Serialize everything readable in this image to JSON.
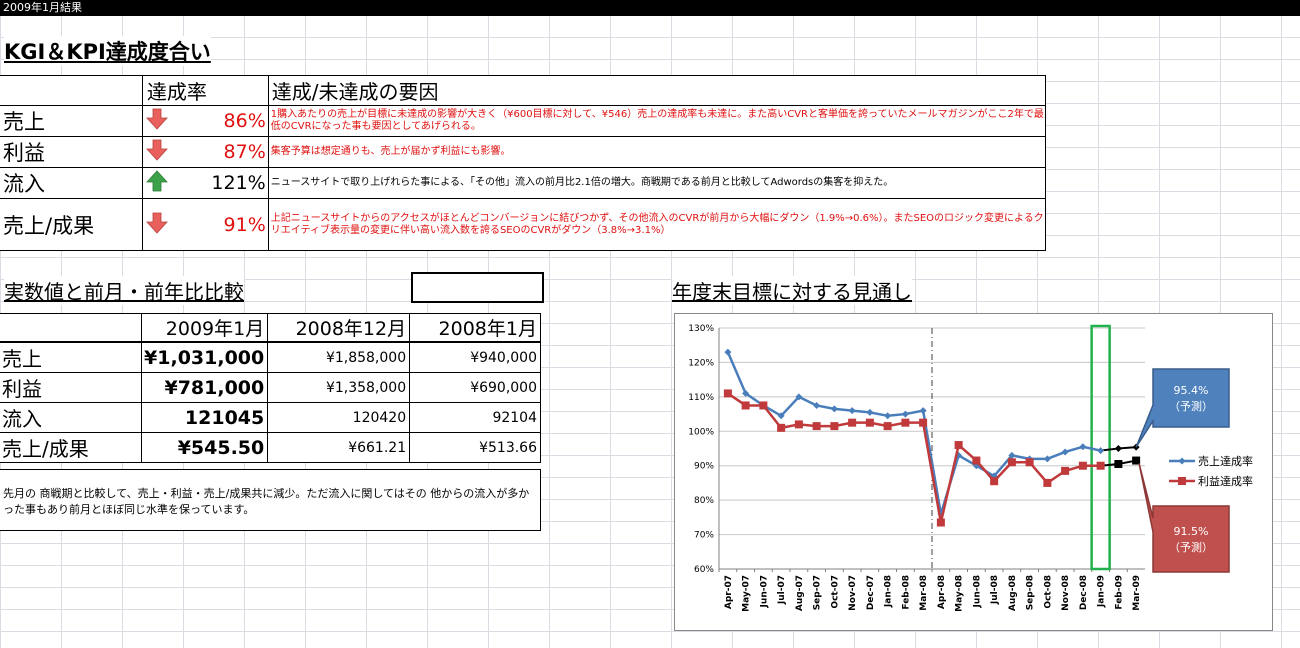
{
  "sheet_title": "2009年1月結果",
  "kpi_section": {
    "title": "KGI＆KPI達成度合い",
    "header_rate": "達成率",
    "header_reason": "達成/未達成の要因",
    "rows": [
      {
        "label": "売上",
        "rate": "86%",
        "trend": "down",
        "reason": "1購入あたりの売上が目標に未達成の影響が大きく（¥600目標に対して、¥546）売上の達成率も未達に。また高いCVRと客単価を誇っていたメールマガジンがここ2年で最低のCVRになった事も要因としてあげられる。",
        "reason_color": "red"
      },
      {
        "label": "利益",
        "rate": "87%",
        "trend": "down",
        "reason": "集客予算は想定通りも、売上が届かず利益にも影響。",
        "reason_color": "red"
      },
      {
        "label": "流入",
        "rate": "121%",
        "trend": "up",
        "reason": "ニュースサイトで取り上げれらた事による、「その他」流入の前月比2.1倍の増大。商戦期である前月と比較してAdwordsの集客を抑えた。",
        "reason_color": "black"
      },
      {
        "label": "売上/成果",
        "rate": "91%",
        "trend": "down",
        "reason": "上記ニュースサイトからのアクセスがほとんどコンバージョンに結びつかず、その他流入のCVRが前月から大幅にダウン（1.9%→0.6%）。またSEOのロジック変更によるクリエイティブ表示量の変更に伴い高い流入数を誇るSEOのCVRがダウン（3.8%→3.1%）",
        "reason_color": "red"
      }
    ]
  },
  "compare_section": {
    "title": "実数値と前月・前年比比較",
    "headers": [
      "2009年1月",
      "2008年12月",
      "2008年1月"
    ],
    "rows": [
      {
        "label": "売上",
        "values": [
          "¥1,031,000",
          "¥1,858,000",
          "¥940,000"
        ]
      },
      {
        "label": "利益",
        "values": [
          "¥781,000",
          "¥1,358,000",
          "¥690,000"
        ]
      },
      {
        "label": "流入",
        "values": [
          "121045",
          "120420",
          "92104"
        ]
      },
      {
        "label": "売上/成果",
        "values": [
          "¥545.50",
          "¥661.21",
          "¥513.66"
        ]
      }
    ],
    "summary": "先月の 商戦期と比較して、売上・利益・売上/成果共に減少。ただ流入に関してはその 他からの流入が多かった事もあり前月とほぼ同じ水準を保っています。"
  },
  "forecast_section": {
    "title": "年度末目標に対する見通し"
  },
  "colors": {
    "sales_series": "#4a7ebb",
    "profit_series": "#c0393b",
    "down_arrow": "#e8615d",
    "up_arrow": "#3ca24a",
    "highlight_box": "#22b14c",
    "forecast_marker": "#000000"
  },
  "chart_data": {
    "type": "line",
    "categories": [
      "Apr-07",
      "May-07",
      "Jun-07",
      "Jul-07",
      "Aug-07",
      "Sep-07",
      "Oct-07",
      "Nov-07",
      "Dec-07",
      "Jan-08",
      "Feb-08",
      "Mar-08",
      "Apr-08",
      "May-08",
      "Jun-08",
      "Jul-08",
      "Aug-08",
      "Sep-08",
      "Oct-08",
      "Nov-08",
      "Dec-08",
      "Jan-09",
      "Feb-09",
      "Mar-09"
    ],
    "y_ticks": [
      "60%",
      "70%",
      "80%",
      "90%",
      "100%",
      "110%",
      "120%",
      "130%"
    ],
    "ylim": [
      60,
      130
    ],
    "series": [
      {
        "name": "売上達成率",
        "values": [
          123,
          111,
          107.5,
          104.5,
          110,
          107.5,
          106.5,
          106,
          105.5,
          104.5,
          105,
          106,
          76,
          93,
          90,
          87,
          93,
          92,
          92,
          94,
          95.5,
          94.4,
          95,
          95.4
        ],
        "forecast_from_index": 21
      },
      {
        "name": "利益達成率",
        "values": [
          111,
          107.5,
          107.5,
          101,
          102,
          101.5,
          101.5,
          102.5,
          102.5,
          101.5,
          102.5,
          102.5,
          73.5,
          96,
          91.5,
          85.5,
          91,
          91,
          85,
          88.5,
          90,
          90,
          90.5,
          91.5
        ],
        "forecast_from_index": 21
      }
    ],
    "callouts": [
      {
        "series": "売上達成率",
        "value_text": "95.4%",
        "note": "（予測）"
      },
      {
        "series": "利益達成率",
        "value_text": "91.5%",
        "note": "（予測）"
      }
    ],
    "grid": true,
    "legend": "right",
    "divider_after_category": "Mar-08",
    "highlight_category": "Jan-09"
  }
}
